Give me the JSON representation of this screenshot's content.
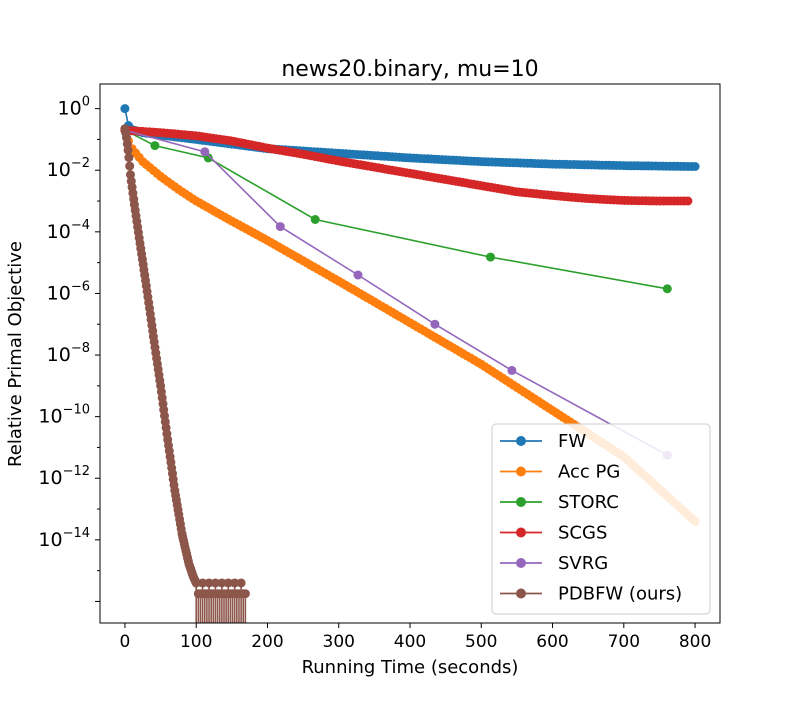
{
  "chart_data": {
    "type": "line",
    "title": "news20.binary, mu=10",
    "xlabel": "Running Time (seconds)",
    "ylabel": "Relative Primal Objective",
    "xlim": [
      -35,
      835
    ],
    "ylim_log10": [
      -16.7,
      0.8
    ],
    "y_scale": "log",
    "x_ticks": [
      0,
      100,
      200,
      300,
      400,
      500,
      600,
      700,
      800
    ],
    "y_ticks": [
      {
        "base": "10",
        "exp": "0",
        "log10": 0
      },
      {
        "base": "10",
        "exp": "−2",
        "log10": -2
      },
      {
        "base": "10",
        "exp": "−4",
        "log10": -4
      },
      {
        "base": "10",
        "exp": "−6",
        "log10": -6
      },
      {
        "base": "10",
        "exp": "−8",
        "log10": -8
      },
      {
        "base": "10",
        "exp": "−10",
        "log10": -10
      },
      {
        "base": "10",
        "exp": "−12",
        "log10": -12
      },
      {
        "base": "10",
        "exp": "−14",
        "log10": -14
      }
    ],
    "legend_position": "lower-right",
    "grid": false,
    "series": [
      {
        "name": "FW",
        "color": "#1f77b4",
        "marker_density": "dense",
        "x": [
          0,
          3,
          10,
          25,
          50,
          100,
          150,
          200,
          300,
          400,
          500,
          600,
          700,
          800
        ],
        "log10_y": [
          0.0,
          -0.5,
          -0.68,
          -0.78,
          -0.86,
          -1.0,
          -1.15,
          -1.3,
          -1.45,
          -1.6,
          -1.72,
          -1.8,
          -1.85,
          -1.88
        ]
      },
      {
        "name": "Acc PG",
        "color": "#ff7f0e",
        "marker_density": "dense",
        "x": [
          0,
          3,
          10,
          25,
          50,
          75,
          100,
          150,
          200,
          300,
          400,
          500,
          600,
          700,
          800
        ],
        "log10_y": [
          -0.7,
          -0.95,
          -1.3,
          -1.72,
          -2.2,
          -2.62,
          -3.0,
          -3.65,
          -4.28,
          -5.6,
          -6.95,
          -8.3,
          -9.8,
          -11.3,
          -13.4
        ]
      },
      {
        "name": "STORC",
        "color": "#2ca02c",
        "marker_density": "sparse",
        "x": [
          0,
          42,
          117,
          267,
          513,
          761
        ],
        "log10_y": [
          -0.7,
          -1.2,
          -1.6,
          -3.6,
          -4.82,
          -5.85
        ]
      },
      {
        "name": "SCGS",
        "color": "#d62728",
        "marker_density": "dense",
        "x": [
          0,
          50,
          100,
          150,
          200,
          250,
          300,
          350,
          400,
          450,
          500,
          550,
          600,
          650,
          700,
          750,
          790
        ],
        "log10_y": [
          -0.7,
          -0.78,
          -0.88,
          -1.05,
          -1.28,
          -1.48,
          -1.7,
          -1.9,
          -2.1,
          -2.3,
          -2.5,
          -2.7,
          -2.82,
          -2.92,
          -2.98,
          -3.0,
          -3.0
        ]
      },
      {
        "name": "SVRG",
        "color": "#9467bd",
        "marker_density": "sparse",
        "x": [
          0,
          112,
          218,
          327,
          435,
          543,
          761
        ],
        "log10_y": [
          -0.7,
          -1.4,
          -3.83,
          -5.4,
          -7.0,
          -8.5,
          -11.25
        ]
      },
      {
        "name": "PDBFW (ours)",
        "color": "#8c564b",
        "marker_density": "dense",
        "x": [
          0,
          2,
          5,
          8,
          12,
          20,
          30,
          40,
          50,
          60,
          70,
          80,
          90,
          96,
          100
        ],
        "log10_y": [
          -0.65,
          -0.9,
          -1.45,
          -2.2,
          -2.9,
          -4.2,
          -5.75,
          -7.4,
          -9.0,
          -10.75,
          -12.4,
          -13.8,
          -14.8,
          -15.2,
          -15.4
        ]
      }
    ]
  }
}
